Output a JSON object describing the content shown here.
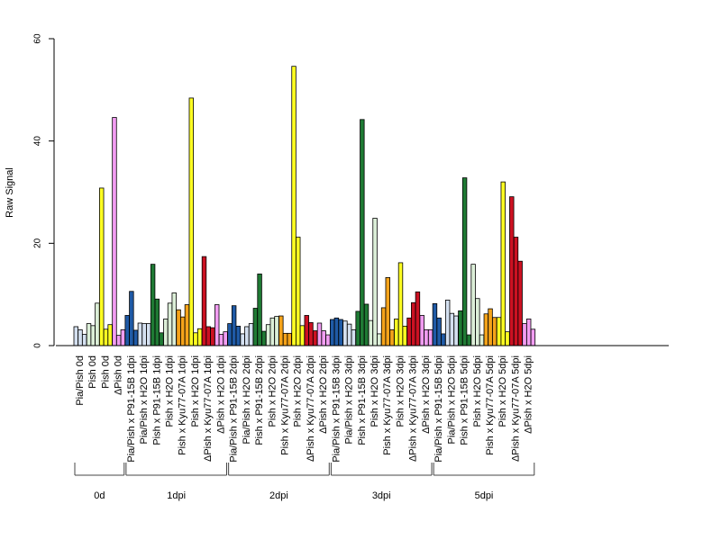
{
  "chart_data": {
    "type": "bar",
    "ylabel": "Raw Signal",
    "ylim": [
      0,
      60
    ],
    "yticks": [
      "0",
      "20",
      "40",
      "60"
    ],
    "grid": false,
    "colors": {
      "Pia/Pish": "#d4e0f0",
      "Pia/Pish x P91-15B": "#1f5aa6",
      "Pia/Pish x H2O": "#d4e0f0",
      "Pish x P91-15B": "#1f7a34",
      "Pish x H2O": "#dcefd8",
      "Pish x Kyu77-07A": "#f5a31a",
      "Pish": "#ffff22",
      "Pish x H2O (yellow)": "#ffff22",
      "ΔPish x Kyu77-07A": "#cc1122",
      "ΔPish": "#f29df2",
      "ΔPish x H2O": "#f29df2"
    },
    "categories": [
      {
        "label": "Pia/Pish 0d",
        "color": "#d4e0f0",
        "values": [
          3.7,
          3.1,
          2.2
        ]
      },
      {
        "label": "Pish 0d",
        "color": "#dcefd8",
        "values": [
          4.3,
          3.9,
          8.3
        ]
      },
      {
        "label": "Pish 0d",
        "color": "#ffff22",
        "values": [
          30.8,
          3.2,
          4.1
        ]
      },
      {
        "label": "ΔPish 0d",
        "color": "#f29df2",
        "values": [
          44.6,
          2.0,
          3.1
        ]
      },
      {
        "label": "Pia/Pish x P91-15B 1dpi",
        "color": "#1f5aa6",
        "values": [
          5.9,
          10.6,
          3.0
        ]
      },
      {
        "label": "Pia/Pish x H2O 1dpi",
        "color": "#d4e0f0",
        "values": [
          4.4,
          4.3,
          4.3
        ]
      },
      {
        "label": "Pish x P91-15B 1dpi",
        "color": "#1f7a34",
        "values": [
          15.9,
          9.1,
          2.5
        ]
      },
      {
        "label": "Pish x H2O 1dpi",
        "color": "#dcefd8",
        "values": [
          5.2,
          8.3,
          10.3
        ]
      },
      {
        "label": "Pish x Kyu77-07A 1dpi",
        "color": "#f5a31a",
        "values": [
          7.0,
          5.6,
          8.0
        ]
      },
      {
        "label": "Pish x H2O 1dpi",
        "color": "#ffff22",
        "values": [
          48.4,
          2.5,
          3.3
        ]
      },
      {
        "label": "ΔPish x Kyu77-07A 1dpi",
        "color": "#cc1122",
        "values": [
          17.4,
          3.7,
          3.5
        ]
      },
      {
        "label": "ΔPish x H2O 1dpi",
        "color": "#f29df2",
        "values": [
          8.0,
          2.2,
          2.7
        ]
      },
      {
        "label": "Pia/Pish x P91-15B 2dpi",
        "color": "#1f5aa6",
        "values": [
          4.3,
          7.8,
          3.8
        ]
      },
      {
        "label": "Pia/Pish x H2O 2dpi",
        "color": "#d4e0f0",
        "values": [
          2.3,
          3.7,
          4.3
        ]
      },
      {
        "label": "Pish x P91-15B 2dpi",
        "color": "#1f7a34",
        "values": [
          7.3,
          14.0,
          2.8
        ]
      },
      {
        "label": "Pish x H2O 2dpi",
        "color": "#dcefd8",
        "values": [
          4.1,
          5.4,
          5.7
        ]
      },
      {
        "label": "Pish x Kyu77-07A 2dpi",
        "color": "#f5a31a",
        "values": [
          5.8,
          2.4,
          2.4
        ]
      },
      {
        "label": "Pish x H2O 2dpi",
        "color": "#ffff22",
        "values": [
          54.6,
          21.2,
          3.9
        ]
      },
      {
        "label": "ΔPish x Kyu77-07A 2dpi",
        "color": "#cc1122",
        "values": [
          5.9,
          4.5,
          2.9
        ]
      },
      {
        "label": "ΔPish x H2O 2dpi",
        "color": "#f29df2",
        "values": [
          4.4,
          2.9,
          2.1
        ]
      },
      {
        "label": "Pia/Pish x P91-15B 3dpi",
        "color": "#1f5aa6",
        "values": [
          5.1,
          5.4,
          5.1
        ]
      },
      {
        "label": "Pia/Pish x H2O 3dpi",
        "color": "#d4e0f0",
        "values": [
          4.8,
          4.2,
          3.1
        ]
      },
      {
        "label": "Pish x P91-15B 3dpi",
        "color": "#1f7a34",
        "values": [
          6.7,
          44.2,
          8.1
        ]
      },
      {
        "label": "Pish x H2O 3dpi",
        "color": "#dcefd8",
        "values": [
          4.9,
          24.9,
          2.3
        ]
      },
      {
        "label": "Pish x Kyu77-07A 3dpi",
        "color": "#f5a31a",
        "values": [
          7.4,
          13.3,
          3.1
        ]
      },
      {
        "label": "Pish x H2O 3dpi",
        "color": "#ffff22",
        "values": [
          5.2,
          16.2,
          3.8
        ]
      },
      {
        "label": "ΔPish x Kyu77-07A 3dpi",
        "color": "#cc1122",
        "values": [
          5.4,
          8.4,
          10.5
        ]
      },
      {
        "label": "ΔPish x H2O 3dpi",
        "color": "#f29df2",
        "values": [
          5.9,
          3.1,
          3.1
        ]
      },
      {
        "label": "Pia/Pish x P91-15B 5dpi",
        "color": "#1f5aa6",
        "values": [
          8.2,
          5.4,
          2.3
        ]
      },
      {
        "label": "Pia/Pish x H2O 5dpi",
        "color": "#d4e0f0",
        "values": [
          8.9,
          6.3,
          5.8
        ]
      },
      {
        "label": "Pish x P91-15B 5dpi",
        "color": "#1f7a34",
        "values": [
          6.8,
          32.8,
          2.1
        ]
      },
      {
        "label": "Pish x H2O 5dpi",
        "color": "#dcefd8",
        "values": [
          15.9,
          9.2,
          2.1
        ]
      },
      {
        "label": "Pish x Kyu77-07A 5dpi",
        "color": "#f5a31a",
        "values": [
          6.2,
          7.2,
          5.5
        ]
      },
      {
        "label": "Pish x H2O 5dpi",
        "color": "#ffff22",
        "values": [
          5.5,
          32.0,
          2.7
        ]
      },
      {
        "label": "ΔPish x Kyu77-07A 5dpi",
        "color": "#cc1122",
        "values": [
          29.1,
          21.2,
          16.5
        ]
      },
      {
        "label": "ΔPish x H2O 5dpi",
        "color": "#f29df2",
        "values": [
          4.3,
          5.2,
          3.2
        ]
      }
    ],
    "groups": [
      {
        "label": "0d",
        "start": 0,
        "end": 3
      },
      {
        "label": "1dpi",
        "start": 4,
        "end": 11
      },
      {
        "label": "2dpi",
        "start": 12,
        "end": 19
      },
      {
        "label": "3dpi",
        "start": 20,
        "end": 27
      },
      {
        "label": "5dpi",
        "start": 28,
        "end": 35
      }
    ]
  }
}
